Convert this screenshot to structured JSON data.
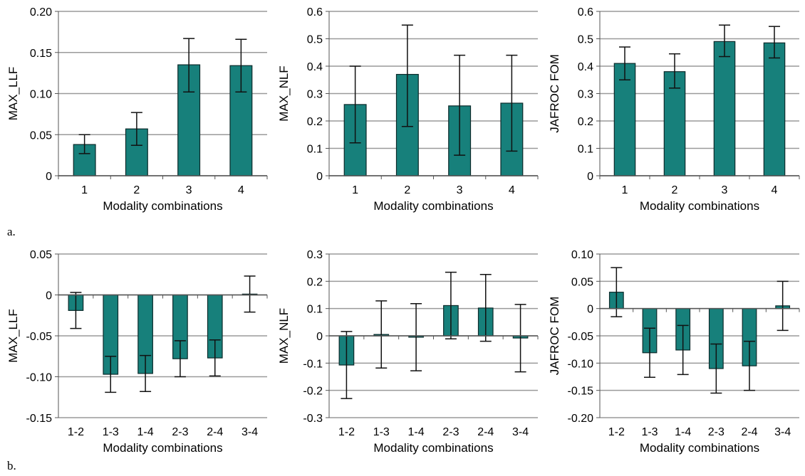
{
  "figure": {
    "panel_labels": [
      "a.",
      "b."
    ]
  },
  "colors": {
    "bar": "#17807b",
    "bar_edge": "#0c2a2a",
    "grid": "#9a9a9a",
    "axis": "#555555"
  },
  "chart_data": [
    {
      "type": "bar",
      "ylabel": "MAX_LLF",
      "xlabel": "Modality combinations",
      "categories": [
        "1",
        "2",
        "3",
        "4"
      ],
      "values": [
        0.038,
        0.057,
        0.135,
        0.134
      ],
      "error_low": [
        0.027,
        0.037,
        0.102,
        0.102
      ],
      "error_high": [
        0.05,
        0.077,
        0.167,
        0.166
      ],
      "ylim": [
        0,
        0.2
      ],
      "yticks": [
        0,
        0.05,
        0.1,
        0.15,
        0.2
      ],
      "yticklabels": [
        "0",
        "0.05",
        "0.10",
        "0.15",
        "0.20"
      ],
      "grid": true
    },
    {
      "type": "bar",
      "ylabel": "MAX_NLF",
      "xlabel": "Modality combinations",
      "categories": [
        "1",
        "2",
        "3",
        "4"
      ],
      "values": [
        0.26,
        0.37,
        0.255,
        0.265
      ],
      "error_low": [
        0.12,
        0.18,
        0.075,
        0.09
      ],
      "error_high": [
        0.4,
        0.55,
        0.44,
        0.44
      ],
      "ylim": [
        0,
        0.6
      ],
      "yticks": [
        0,
        0.1,
        0.2,
        0.3,
        0.4,
        0.5,
        0.6
      ],
      "yticklabels": [
        "0",
        "0.1",
        "0.2",
        "0.3",
        "0.4",
        "0.5",
        "0.6"
      ],
      "grid": true
    },
    {
      "type": "bar",
      "ylabel": "JAFROC FOM",
      "xlabel": "Modality combinations",
      "categories": [
        "1",
        "2",
        "3",
        "4"
      ],
      "values": [
        0.41,
        0.38,
        0.49,
        0.485
      ],
      "error_low": [
        0.35,
        0.32,
        0.435,
        0.43
      ],
      "error_high": [
        0.47,
        0.445,
        0.55,
        0.545
      ],
      "ylim": [
        0,
        0.6
      ],
      "yticks": [
        0,
        0.1,
        0.2,
        0.3,
        0.4,
        0.5,
        0.6
      ],
      "yticklabels": [
        "0",
        "0.1",
        "0.2",
        "0.3",
        "0.4",
        "0.5",
        "0.6"
      ],
      "grid": true
    },
    {
      "type": "bar",
      "ylabel": "MAX_LLF",
      "xlabel": "Modality combinations",
      "categories": [
        "1-2",
        "1-3",
        "1-4",
        "2-3",
        "2-4",
        "3-4"
      ],
      "values": [
        -0.019,
        -0.097,
        -0.096,
        -0.078,
        -0.077,
        0.001
      ],
      "error_low": [
        -0.041,
        -0.119,
        -0.118,
        -0.1,
        -0.099,
        -0.021
      ],
      "error_high": [
        0.003,
        -0.075,
        -0.074,
        -0.056,
        -0.055,
        0.023
      ],
      "ylim": [
        -0.15,
        0.05
      ],
      "yticks": [
        -0.15,
        -0.1,
        -0.05,
        0,
        0.05
      ],
      "yticklabels": [
        "-0.15",
        "-0.10",
        "-0.05",
        "0",
        "0.05"
      ],
      "grid": true
    },
    {
      "type": "bar",
      "ylabel": "MAX_NLF",
      "xlabel": "Modality combinations",
      "categories": [
        "1-2",
        "1-3",
        "1-4",
        "2-3",
        "2-4",
        "3-4"
      ],
      "values": [
        -0.107,
        0.005,
        -0.005,
        0.111,
        0.102,
        -0.008
      ],
      "error_low": [
        -0.23,
        -0.118,
        -0.128,
        -0.011,
        -0.02,
        -0.132
      ],
      "error_high": [
        0.016,
        0.128,
        0.118,
        0.233,
        0.225,
        0.115
      ],
      "ylim": [
        -0.3,
        0.3
      ],
      "yticks": [
        -0.3,
        -0.2,
        -0.1,
        0,
        0.1,
        0.2,
        0.3
      ],
      "yticklabels": [
        "-0.3",
        "-0.2",
        "-0.1",
        "0",
        "0.1",
        "0.2",
        "0.3"
      ],
      "grid": true
    },
    {
      "type": "bar",
      "ylabel": "JAFROC FOM",
      "xlabel": "Modality combinations",
      "categories": [
        "1-2",
        "1-3",
        "1-4",
        "2-3",
        "2-4",
        "3-4"
      ],
      "values": [
        0.03,
        -0.081,
        -0.076,
        -0.11,
        -0.105,
        0.005
      ],
      "error_low": [
        -0.015,
        -0.126,
        -0.121,
        -0.155,
        -0.15,
        -0.04
      ],
      "error_high": [
        0.075,
        -0.036,
        -0.031,
        -0.065,
        -0.06,
        0.05
      ],
      "ylim": [
        -0.2,
        0.1
      ],
      "yticks": [
        -0.2,
        -0.15,
        -0.1,
        -0.05,
        0,
        0.05,
        0.1
      ],
      "yticklabels": [
        "-0.20",
        "-0.15",
        "-0.10",
        "-0.05",
        "0",
        "0.05",
        "0.10"
      ],
      "grid": true
    }
  ]
}
